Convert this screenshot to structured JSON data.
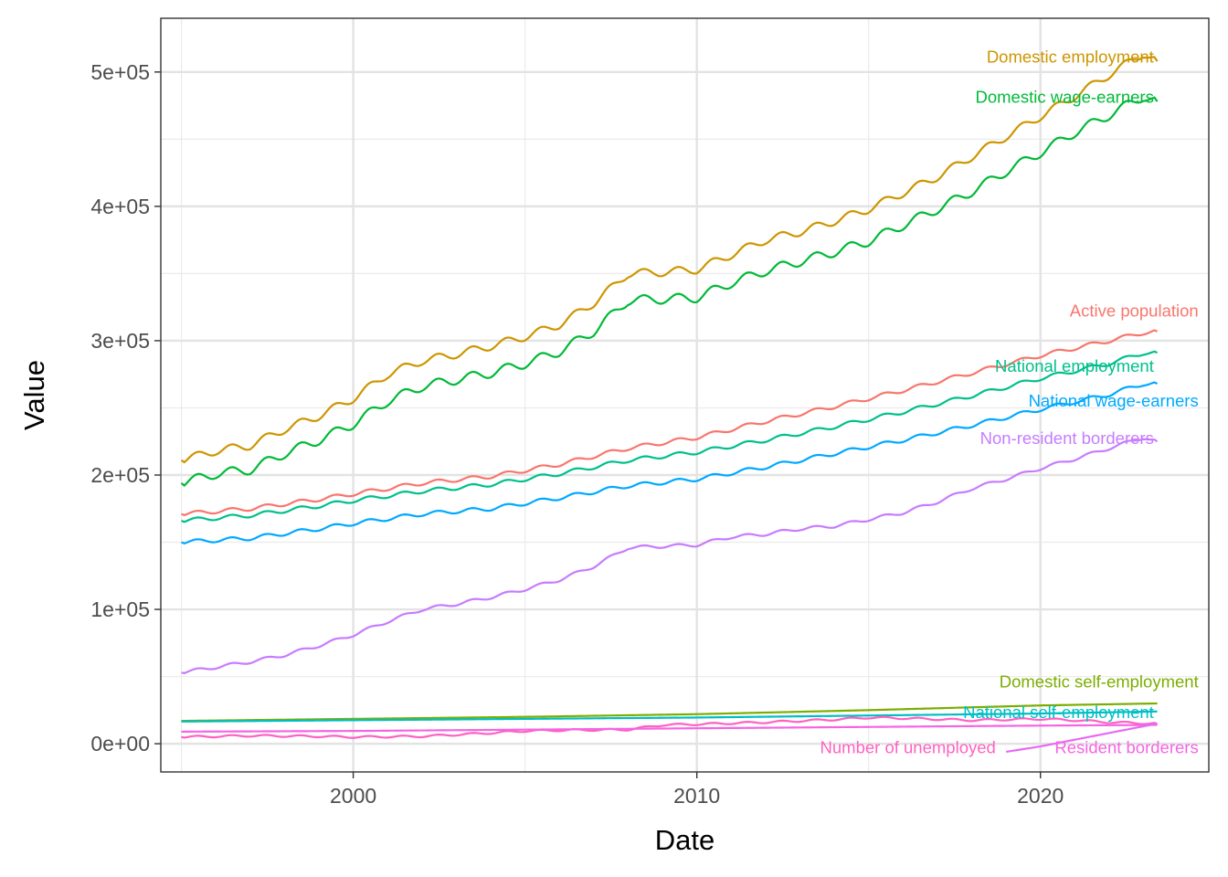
{
  "chart_data": {
    "type": "line",
    "title": "",
    "xlabel": "Date",
    "ylabel": "Value",
    "xlim": [
      1994.4,
      2024.9
    ],
    "ylim": [
      -21000,
      540000
    ],
    "x_ticks": [
      2000,
      2010,
      2020
    ],
    "x_tick_labels": [
      "2000",
      "2010",
      "2020"
    ],
    "y_ticks": [
      0,
      100000,
      200000,
      300000,
      400000,
      500000
    ],
    "y_tick_labels": [
      "0e+00",
      "1e+05",
      "2e+05",
      "3e+05",
      "4e+05",
      "5e+05"
    ],
    "grid": true,
    "legend": "direct labels at line ends",
    "series": [
      {
        "name": "Domestic employment",
        "color": "#CD9600",
        "x": [
          1995.0,
          1996.0,
          1997.0,
          1998.0,
          1999.0,
          2000.0,
          2001.0,
          2002.0,
          2003.0,
          2004.0,
          2005.0,
          2006.0,
          2007.0,
          2008.0,
          2009.0,
          2010.0,
          2011.0,
          2012.0,
          2013.0,
          2014.0,
          2015.0,
          2016.0,
          2017.0,
          2018.0,
          2019.0,
          2020.0,
          2021.0,
          2022.0,
          2023.0,
          2023.4
        ],
        "y": [
          211000,
          218000,
          222000,
          234000,
          244000,
          257000,
          275000,
          285000,
          290000,
          296000,
          303000,
          312000,
          328000,
          350000,
          351000,
          353000,
          364000,
          375000,
          381000,
          389000,
          398000,
          410000,
          422000,
          437000,
          452000,
          467000,
          482000,
          498000,
          514000,
          508000
        ],
        "amplitude": 3000
      },
      {
        "name": "Domestic wage-earners",
        "color": "#00BA38",
        "x": [
          1995.0,
          1996.0,
          1997.0,
          1998.0,
          1999.0,
          2000.0,
          2001.0,
          2002.0,
          2003.0,
          2004.0,
          2005.0,
          2006.0,
          2007.0,
          2008.0,
          2009.0,
          2010.0,
          2011.0,
          2012.0,
          2013.0,
          2014.0,
          2015.0,
          2016.0,
          2017.0,
          2018.0,
          2019.0,
          2020.0,
          2021.0,
          2022.0,
          2023.0,
          2023.4
        ],
        "y": [
          194000,
          201000,
          204000,
          216000,
          226000,
          238000,
          255000,
          266000,
          271000,
          276000,
          283000,
          292000,
          307000,
          330000,
          331000,
          332000,
          343000,
          352000,
          359000,
          366000,
          374000,
          386000,
          398000,
          411000,
          426000,
          440000,
          455000,
          468000,
          482000,
          478000
        ],
        "amplitude": 3500
      },
      {
        "name": "Active population",
        "color": "#F8766D",
        "x": [
          1995.0,
          1997.0,
          1999.0,
          2000.0,
          2002.0,
          2004.0,
          2006.0,
          2008.0,
          2010.0,
          2012.0,
          2014.0,
          2016.0,
          2018.0,
          2020.0,
          2022.0,
          2023.0,
          2023.4
        ],
        "y": [
          171000,
          175000,
          182000,
          186000,
          194000,
          199000,
          208000,
          220000,
          228000,
          240000,
          251000,
          263000,
          276000,
          289000,
          300000,
          306000,
          307000
        ],
        "amplitude": 1500
      },
      {
        "name": "National employment",
        "color": "#00C08B",
        "x": [
          1995.0,
          1997.0,
          1999.0,
          2000.0,
          2002.0,
          2004.0,
          2006.0,
          2008.0,
          2010.0,
          2012.0,
          2014.0,
          2016.0,
          2018.0,
          2020.0,
          2022.0,
          2023.0,
          2023.4
        ],
        "y": [
          166000,
          170000,
          177000,
          181000,
          188000,
          193000,
          201000,
          211000,
          217000,
          226000,
          236000,
          247000,
          259000,
          272000,
          283000,
          291000,
          291000
        ],
        "amplitude": 1500
      },
      {
        "name": "National wage-earners",
        "color": "#00A9FF",
        "x": [
          1995.0,
          1997.0,
          1999.0,
          2000.0,
          2002.0,
          2004.0,
          2006.0,
          2008.0,
          2010.0,
          2012.0,
          2014.0,
          2016.0,
          2018.0,
          2020.0,
          2022.0,
          2023.0,
          2023.4
        ],
        "y": [
          150000,
          153000,
          160000,
          164000,
          171000,
          175000,
          183000,
          192000,
          197000,
          206000,
          216000,
          226000,
          237000,
          249000,
          260000,
          268000,
          268000
        ],
        "amplitude": 1500
      },
      {
        "name": "Non-resident borderers",
        "color": "#C77CFF",
        "x": [
          1995.0,
          1996.0,
          1997.0,
          1998.0,
          1999.0,
          2000.0,
          2001.0,
          2002.0,
          2003.0,
          2004.0,
          2005.0,
          2006.0,
          2007.0,
          2008.0,
          2009.0,
          2010.0,
          2011.0,
          2012.0,
          2013.0,
          2014.0,
          2015.0,
          2016.0,
          2017.0,
          2018.0,
          2019.0,
          2020.0,
          2021.0,
          2022.0,
          2023.0,
          2023.4
        ],
        "y": [
          53000,
          57000,
          61000,
          66000,
          73000,
          81000,
          91000,
          100000,
          104000,
          109000,
          115000,
          122000,
          132000,
          146000,
          147000,
          148000,
          154000,
          156000,
          160000,
          162000,
          167000,
          172000,
          180000,
          190000,
          197000,
          205000,
          212000,
          220000,
          228000,
          225000
        ],
        "amplitude": 1200
      },
      {
        "name": "Domestic self-employment",
        "color": "#7CAE00",
        "x": [
          1995.0,
          2000.0,
          2005.0,
          2010.0,
          2015.0,
          2020.0,
          2023.4
        ],
        "y": [
          17000,
          18500,
          20000,
          22000,
          25000,
          28500,
          30000
        ],
        "amplitude": 0
      },
      {
        "name": "National self-employment",
        "color": "#00BFC4",
        "x": [
          1995.0,
          2000.0,
          2005.0,
          2010.0,
          2015.0,
          2020.0,
          2023.4
        ],
        "y": [
          16500,
          17500,
          18500,
          19500,
          21000,
          22500,
          24000
        ],
        "amplitude": 0
      },
      {
        "name": "Number of unemployed",
        "color": "#FF61C3",
        "x": [
          1995.0,
          1997.0,
          1999.0,
          2000.0,
          2002.0,
          2004.0,
          2005.0,
          2006.0,
          2008.0,
          2009.0,
          2010.0,
          2012.0,
          2014.0,
          2015.0,
          2016.0,
          2018.0,
          2020.0,
          2021.0,
          2022.0,
          2023.4
        ],
        "y": [
          5000,
          6000,
          5500,
          5000,
          5500,
          8000,
          9500,
          10000,
          10500,
          14000,
          14500,
          16000,
          18000,
          19500,
          19000,
          17500,
          18500,
          17500,
          16000,
          15000
        ],
        "amplitude": 700
      },
      {
        "name": "Resident borderers",
        "color": "#F564E3",
        "x": [
          1995.0,
          2000.0,
          2005.0,
          2010.0,
          2015.0,
          2020.0,
          2023.4
        ],
        "y": [
          9000,
          9500,
          10500,
          11500,
          12500,
          13500,
          14000
        ],
        "amplitude": 0
      },
      {
        "name": "Resident borderers",
        "color": "#E76BF3",
        "x": [
          2019.0,
          2020.0,
          2021.0,
          2022.0,
          2023.0,
          2023.4
        ],
        "y": [
          -6000,
          -2000,
          3000,
          8000,
          13000,
          15000
        ],
        "amplitude": 0
      }
    ],
    "annotations": [
      {
        "text": "Domestic employment",
        "color": "#CD9600",
        "x": 2023.3,
        "y": 507000,
        "anchor": "end"
      },
      {
        "text": "Domestic wage-earners",
        "color": "#00BA38",
        "x": 2023.3,
        "y": 477000,
        "anchor": "end"
      },
      {
        "text": "Active population",
        "color": "#F8766D",
        "x": 2024.6,
        "y": 318000,
        "anchor": "end"
      },
      {
        "text": "National employment",
        "color": "#00C08B",
        "x": 2023.3,
        "y": 277000,
        "anchor": "end"
      },
      {
        "text": "National wage-earners",
        "color": "#00A9FF",
        "x": 2024.6,
        "y": 251000,
        "anchor": "end"
      },
      {
        "text": "Non-resident borderers",
        "color": "#C77CFF",
        "x": 2023.3,
        "y": 223000,
        "anchor": "end"
      },
      {
        "text": "Domestic self-employment",
        "color": "#7CAE00",
        "x": 2024.6,
        "y": 42000,
        "anchor": "end"
      },
      {
        "text": "National self-employment",
        "color": "#00BFC4",
        "x": 2023.3,
        "y": 19000,
        "anchor": "end"
      },
      {
        "text": "Number of unemployed",
        "color": "#FF61C3",
        "x": 2018.7,
        "y": -7000,
        "anchor": "end"
      },
      {
        "text": "Resident borderers",
        "color": "#F564E3",
        "x": 2024.6,
        "y": -7000,
        "anchor": "end"
      }
    ]
  }
}
